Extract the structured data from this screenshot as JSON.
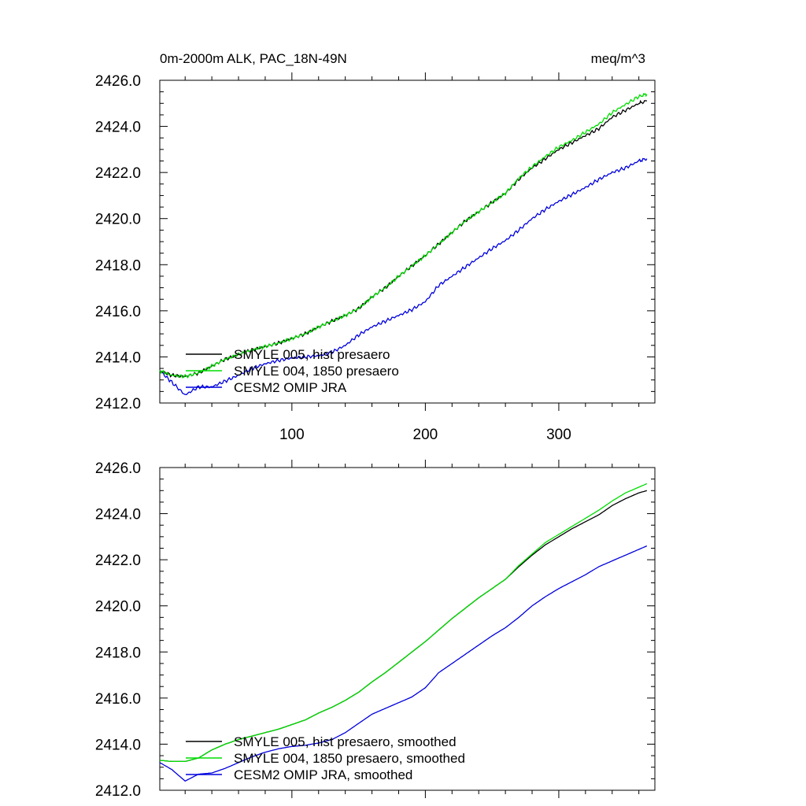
{
  "chart_data": [
    {
      "type": "line",
      "title_left": "0m-2000m ALK, PAC_18N-49N",
      "title_right": "meq/m^3",
      "xlabel": "",
      "ylabel": "",
      "xlim": [
        1,
        372
      ],
      "ylim": [
        2412,
        2426
      ],
      "xticks": [
        100,
        200,
        300
      ],
      "yticks": [
        "2412.0",
        "2414.0",
        "2416.0",
        "2418.0",
        "2420.0",
        "2422.0",
        "2424.0",
        "2426.0"
      ],
      "show_x_tick_labels": true,
      "grid": false,
      "legend": "bottom-left",
      "series": [
        {
          "name": "SMYLE 005, hist presaero",
          "color": "#000000",
          "points": [
            [
              1,
              2413.4
            ],
            [
              10,
              2413.2
            ],
            [
              20,
              2413.15
            ],
            [
              30,
              2413.3
            ],
            [
              40,
              2413.6
            ],
            [
              50,
              2413.9
            ],
            [
              60,
              2414.1
            ],
            [
              70,
              2414.3
            ],
            [
              80,
              2414.45
            ],
            [
              90,
              2414.6
            ],
            [
              100,
              2414.8
            ],
            [
              110,
              2415.0
            ],
            [
              120,
              2415.3
            ],
            [
              130,
              2415.55
            ],
            [
              140,
              2415.8
            ],
            [
              150,
              2416.1
            ],
            [
              160,
              2416.6
            ],
            [
              170,
              2417.0
            ],
            [
              180,
              2417.5
            ],
            [
              190,
              2417.95
            ],
            [
              200,
              2418.4
            ],
            [
              210,
              2418.9
            ],
            [
              220,
              2419.4
            ],
            [
              230,
              2419.9
            ],
            [
              240,
              2420.3
            ],
            [
              250,
              2420.7
            ],
            [
              260,
              2421.1
            ],
            [
              270,
              2421.7
            ],
            [
              280,
              2422.2
            ],
            [
              290,
              2422.6
            ],
            [
              300,
              2423.0
            ],
            [
              310,
              2423.3
            ],
            [
              320,
              2423.6
            ],
            [
              330,
              2423.9
            ],
            [
              340,
              2424.4
            ],
            [
              350,
              2424.7
            ],
            [
              360,
              2425.0
            ],
            [
              366,
              2425.1
            ]
          ]
        },
        {
          "name": "SMYLE 004, 1850 presaero",
          "color": "#00dd00",
          "points": [
            [
              1,
              2413.4
            ],
            [
              10,
              2413.2
            ],
            [
              20,
              2413.15
            ],
            [
              30,
              2413.3
            ],
            [
              40,
              2413.6
            ],
            [
              50,
              2413.9
            ],
            [
              60,
              2414.1
            ],
            [
              70,
              2414.3
            ],
            [
              80,
              2414.45
            ],
            [
              90,
              2414.6
            ],
            [
              100,
              2414.8
            ],
            [
              110,
              2415.0
            ],
            [
              120,
              2415.3
            ],
            [
              130,
              2415.55
            ],
            [
              140,
              2415.8
            ],
            [
              150,
              2416.1
            ],
            [
              160,
              2416.6
            ],
            [
              170,
              2417.0
            ],
            [
              180,
              2417.5
            ],
            [
              190,
              2417.95
            ],
            [
              200,
              2418.4
            ],
            [
              210,
              2418.9
            ],
            [
              220,
              2419.4
            ],
            [
              230,
              2419.9
            ],
            [
              240,
              2420.3
            ],
            [
              250,
              2420.7
            ],
            [
              260,
              2421.1
            ],
            [
              270,
              2421.75
            ],
            [
              280,
              2422.25
            ],
            [
              290,
              2422.7
            ],
            [
              300,
              2423.1
            ],
            [
              310,
              2423.4
            ],
            [
              320,
              2423.75
            ],
            [
              330,
              2424.1
            ],
            [
              340,
              2424.6
            ],
            [
              350,
              2424.95
            ],
            [
              360,
              2425.3
            ],
            [
              366,
              2425.4
            ]
          ]
        },
        {
          "name": "CESM2 OMIP JRA",
          "color": "#0000dd",
          "points": [
            [
              1,
              2413.4
            ],
            [
              10,
              2412.9
            ],
            [
              20,
              2412.35
            ],
            [
              30,
              2412.7
            ],
            [
              40,
              2412.7
            ],
            [
              50,
              2412.95
            ],
            [
              60,
              2413.2
            ],
            [
              70,
              2413.5
            ],
            [
              80,
              2413.7
            ],
            [
              90,
              2413.85
            ],
            [
              100,
              2413.95
            ],
            [
              110,
              2414.0
            ],
            [
              120,
              2414.05
            ],
            [
              130,
              2414.2
            ],
            [
              140,
              2414.5
            ],
            [
              150,
              2414.95
            ],
            [
              160,
              2415.3
            ],
            [
              170,
              2415.55
            ],
            [
              180,
              2415.8
            ],
            [
              190,
              2416.05
            ],
            [
              200,
              2416.4
            ],
            [
              210,
              2417.1
            ],
            [
              220,
              2417.5
            ],
            [
              230,
              2417.9
            ],
            [
              240,
              2418.3
            ],
            [
              250,
              2418.7
            ],
            [
              260,
              2419.05
            ],
            [
              270,
              2419.5
            ],
            [
              280,
              2420.0
            ],
            [
              290,
              2420.4
            ],
            [
              300,
              2420.75
            ],
            [
              310,
              2421.05
            ],
            [
              320,
              2421.35
            ],
            [
              330,
              2421.7
            ],
            [
              340,
              2422.0
            ],
            [
              350,
              2422.2
            ],
            [
              360,
              2422.5
            ],
            [
              366,
              2422.6
            ]
          ]
        }
      ]
    },
    {
      "type": "line",
      "xlabel": "",
      "ylabel": "",
      "xlim": [
        1,
        372
      ],
      "ylim": [
        2412,
        2426
      ],
      "xticks": [
        100,
        200,
        300
      ],
      "yticks": [
        "2412.0",
        "2414.0",
        "2416.0",
        "2418.0",
        "2420.0",
        "2422.0",
        "2424.0",
        "2426.0"
      ],
      "show_x_tick_labels": false,
      "grid": false,
      "legend": "bottom-left",
      "series": [
        {
          "name": "SMYLE 005, hist presaero, smoothed",
          "color": "#000000",
          "points": [
            [
              1,
              2413.3
            ],
            [
              10,
              2413.25
            ],
            [
              20,
              2413.25
            ],
            [
              30,
              2413.4
            ],
            [
              40,
              2413.75
            ],
            [
              50,
              2414.0
            ],
            [
              60,
              2414.2
            ],
            [
              70,
              2414.35
            ],
            [
              80,
              2414.5
            ],
            [
              90,
              2414.65
            ],
            [
              100,
              2414.85
            ],
            [
              110,
              2415.05
            ],
            [
              120,
              2415.35
            ],
            [
              130,
              2415.6
            ],
            [
              140,
              2415.9
            ],
            [
              150,
              2416.25
            ],
            [
              160,
              2416.7
            ],
            [
              170,
              2417.1
            ],
            [
              180,
              2417.55
            ],
            [
              190,
              2418.0
            ],
            [
              200,
              2418.45
            ],
            [
              210,
              2418.95
            ],
            [
              220,
              2419.45
            ],
            [
              230,
              2419.9
            ],
            [
              240,
              2420.35
            ],
            [
              250,
              2420.75
            ],
            [
              260,
              2421.15
            ],
            [
              270,
              2421.7
            ],
            [
              280,
              2422.2
            ],
            [
              290,
              2422.65
            ],
            [
              300,
              2423.0
            ],
            [
              310,
              2423.35
            ],
            [
              320,
              2423.65
            ],
            [
              330,
              2423.95
            ],
            [
              340,
              2424.35
            ],
            [
              350,
              2424.65
            ],
            [
              360,
              2424.9
            ],
            [
              366,
              2425.0
            ]
          ]
        },
        {
          "name": "SMYLE 004, 1850 presaero, smoothed",
          "color": "#00dd00",
          "points": [
            [
              1,
              2413.3
            ],
            [
              10,
              2413.25
            ],
            [
              20,
              2413.25
            ],
            [
              30,
              2413.4
            ],
            [
              40,
              2413.75
            ],
            [
              50,
              2414.0
            ],
            [
              60,
              2414.2
            ],
            [
              70,
              2414.35
            ],
            [
              80,
              2414.5
            ],
            [
              90,
              2414.65
            ],
            [
              100,
              2414.85
            ],
            [
              110,
              2415.05
            ],
            [
              120,
              2415.35
            ],
            [
              130,
              2415.6
            ],
            [
              140,
              2415.9
            ],
            [
              150,
              2416.25
            ],
            [
              160,
              2416.7
            ],
            [
              170,
              2417.1
            ],
            [
              180,
              2417.55
            ],
            [
              190,
              2418.0
            ],
            [
              200,
              2418.45
            ],
            [
              210,
              2418.95
            ],
            [
              220,
              2419.45
            ],
            [
              230,
              2419.9
            ],
            [
              240,
              2420.35
            ],
            [
              250,
              2420.75
            ],
            [
              260,
              2421.15
            ],
            [
              270,
              2421.75
            ],
            [
              280,
              2422.25
            ],
            [
              290,
              2422.75
            ],
            [
              300,
              2423.1
            ],
            [
              310,
              2423.45
            ],
            [
              320,
              2423.8
            ],
            [
              330,
              2424.15
            ],
            [
              340,
              2424.55
            ],
            [
              350,
              2424.9
            ],
            [
              360,
              2425.15
            ],
            [
              366,
              2425.3
            ]
          ]
        },
        {
          "name": "CESM2 OMIP JRA, smoothed",
          "color": "#0000dd",
          "points": [
            [
              1,
              2413.2
            ],
            [
              10,
              2412.9
            ],
            [
              20,
              2412.4
            ],
            [
              30,
              2412.7
            ],
            [
              40,
              2412.75
            ],
            [
              50,
              2412.95
            ],
            [
              60,
              2413.2
            ],
            [
              70,
              2413.45
            ],
            [
              80,
              2413.65
            ],
            [
              90,
              2413.8
            ],
            [
              100,
              2413.9
            ],
            [
              110,
              2413.95
            ],
            [
              120,
              2414.05
            ],
            [
              130,
              2414.2
            ],
            [
              140,
              2414.5
            ],
            [
              150,
              2414.9
            ],
            [
              160,
              2415.3
            ],
            [
              170,
              2415.55
            ],
            [
              180,
              2415.8
            ],
            [
              190,
              2416.05
            ],
            [
              200,
              2416.45
            ],
            [
              210,
              2417.1
            ],
            [
              220,
              2417.5
            ],
            [
              230,
              2417.9
            ],
            [
              240,
              2418.3
            ],
            [
              250,
              2418.7
            ],
            [
              260,
              2419.05
            ],
            [
              270,
              2419.5
            ],
            [
              280,
              2420.0
            ],
            [
              290,
              2420.4
            ],
            [
              300,
              2420.75
            ],
            [
              310,
              2421.05
            ],
            [
              320,
              2421.35
            ],
            [
              330,
              2421.7
            ],
            [
              340,
              2421.95
            ],
            [
              350,
              2422.2
            ],
            [
              360,
              2422.45
            ],
            [
              366,
              2422.6
            ]
          ]
        }
      ]
    }
  ]
}
